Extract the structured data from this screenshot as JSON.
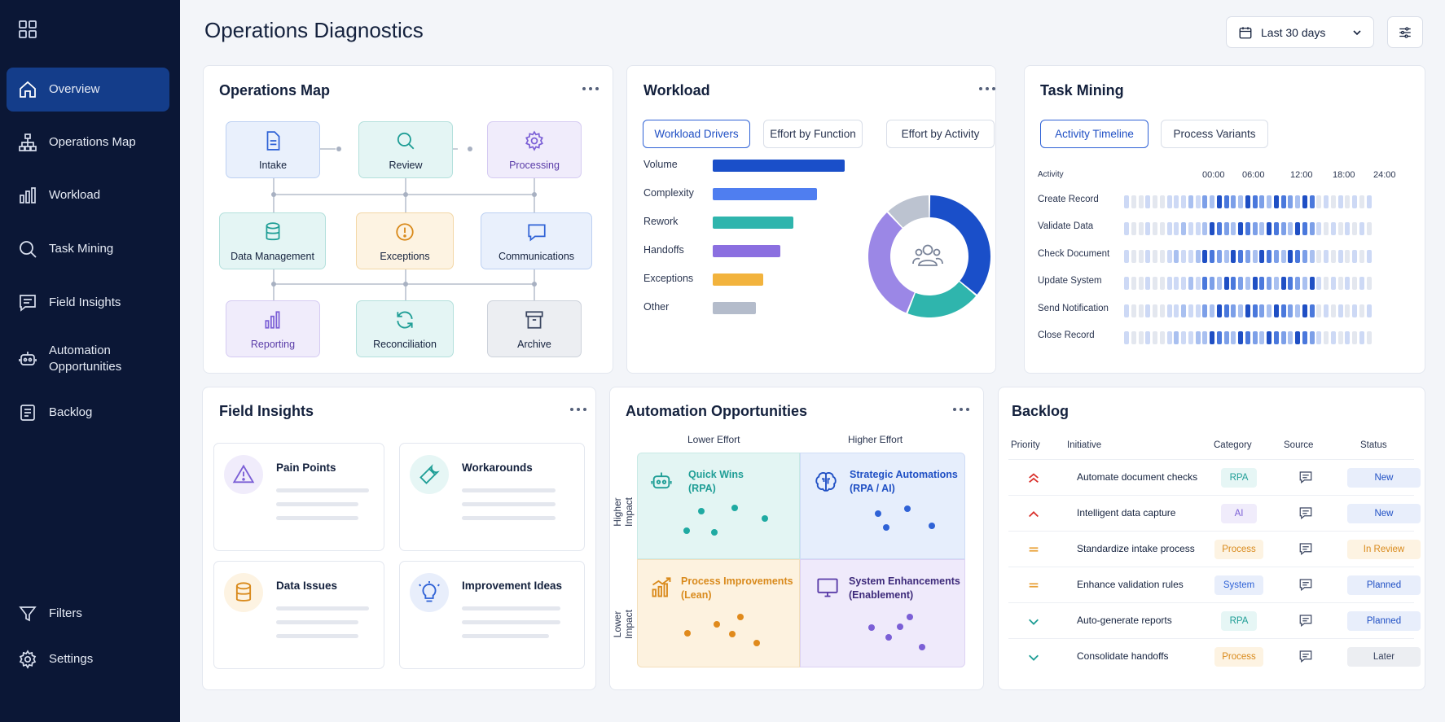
{
  "sidebar": {
    "items": [
      {
        "label": "Overview",
        "icon": "home-icon"
      },
      {
        "label": "Operations Map",
        "icon": "sitemap-icon"
      },
      {
        "label": "Workload",
        "icon": "bar-chart-icon"
      },
      {
        "label": "Task Mining",
        "icon": "search-icon"
      },
      {
        "label": "Field Insights",
        "icon": "message-icon"
      },
      {
        "label": "Automation Opportunities",
        "icon": "robot-icon"
      },
      {
        "label": "Backlog",
        "icon": "list-icon"
      }
    ],
    "bottom": [
      {
        "label": "Filters",
        "icon": "filter-icon"
      },
      {
        "label": "Settings",
        "icon": "gear-icon"
      }
    ]
  },
  "header": {
    "title": "Operations Diagnostics",
    "date_range": "Last 30 days"
  },
  "operations_map": {
    "title": "Operations Map",
    "nodes": [
      "Intake",
      "Review",
      "Processing",
      "Data Management",
      "Exceptions",
      "Communications",
      "Reporting",
      "Reconciliation",
      "Archive"
    ]
  },
  "workload": {
    "title": "Workload",
    "tabs": [
      "Workload Drivers",
      "Effort by Function",
      "Effort by Activity"
    ],
    "active_tab": "Workload Drivers",
    "colors": [
      "#1a4fc9",
      "#4f7ef0",
      "#2fb5ad",
      "#8b6fe0",
      "#f2b33d",
      "#b4bccb"
    ],
    "chart_data": {
      "type": "bar",
      "categories": [
        "Volume",
        "Complexity",
        "Rework",
        "Handoffs",
        "Exceptions",
        "Other"
      ],
      "values": [
        100,
        79,
        61,
        51,
        38,
        33
      ],
      "xlim": [
        0,
        100
      ]
    },
    "donut": {
      "type": "pie",
      "values": [
        36,
        20,
        32,
        12
      ],
      "colors": [
        "#1a4fc9",
        "#2fb5ad",
        "#9b87e6",
        "#bcc3d0"
      ],
      "center_icon": "users-icon"
    }
  },
  "task_mining": {
    "title": "Task Mining",
    "tabs": [
      "Activity Timeline",
      "Process Variants"
    ],
    "active_tab": "Activity Timeline",
    "column_header": "Activity",
    "times": [
      "00:00",
      "06:00",
      "12:00",
      "18:00",
      "24:00"
    ],
    "activities": [
      "Create Record",
      "Validate Data",
      "Check Document",
      "Update System",
      "Send Notification",
      "Close Record"
    ]
  },
  "field_insights": {
    "title": "Field Insights",
    "items": [
      {
        "label": "Pain Points",
        "icon": "warning-icon",
        "color": "#8b6fe0",
        "bg": "#f0ecfb"
      },
      {
        "label": "Workarounds",
        "icon": "wrench-icon",
        "color": "#2fb5ad",
        "bg": "#e6f6f5"
      },
      {
        "label": "Data Issues",
        "icon": "database-icon",
        "color": "#e9a23b",
        "bg": "#fdf3e2"
      },
      {
        "label": "Improvement Ideas",
        "icon": "lightbulb-icon",
        "color": "#2f62d6",
        "bg": "#e8eefb"
      }
    ]
  },
  "automation": {
    "title": "Automation Opportunities",
    "x_labels": [
      "Lower Effort",
      "Higher Effort"
    ],
    "y_labels": [
      "Higher Impact",
      "Lower Impact"
    ],
    "quadrants": [
      {
        "title_1": "Quick Wins",
        "title_2": "(RPA)",
        "icon": "robot-icon",
        "color": "#1f9e96",
        "bg": "#e3f5f3"
      },
      {
        "title_1": "Strategic Automations",
        "title_2": "(RPA / AI)",
        "icon": "brain-icon",
        "color": "#1f4fc4",
        "bg": "#e6eefc"
      },
      {
        "title_1": "Process Improvements",
        "title_2": "(Lean)",
        "icon": "chart-icon",
        "color": "#d98a1c",
        "bg": "#fdf2df"
      },
      {
        "title_1": "System Enhancements",
        "title_2": "(Enablement)",
        "icon": "monitor-icon",
        "color": "#5a3ca8",
        "bg": "#efeafb"
      }
    ]
  },
  "backlog": {
    "title": "Backlog",
    "headers": [
      "Priority",
      "Initiative",
      "Category",
      "Source",
      "Status"
    ],
    "rows": [
      {
        "priority": "highest",
        "initiative": "Automate document checks",
        "category": "RPA",
        "status": "New"
      },
      {
        "priority": "high",
        "initiative": "Intelligent data capture",
        "category": "AI",
        "status": "New"
      },
      {
        "priority": "medium",
        "initiative": "Standardize intake process",
        "category": "Process",
        "status": "In Review"
      },
      {
        "priority": "medium",
        "initiative": "Enhance validation rules",
        "category": "System",
        "status": "Planned"
      },
      {
        "priority": "low",
        "initiative": "Auto-generate reports",
        "category": "RPA",
        "status": "Planned"
      },
      {
        "priority": "low",
        "initiative": "Consolidate handoffs",
        "category": "Process",
        "status": "Later"
      }
    ]
  }
}
